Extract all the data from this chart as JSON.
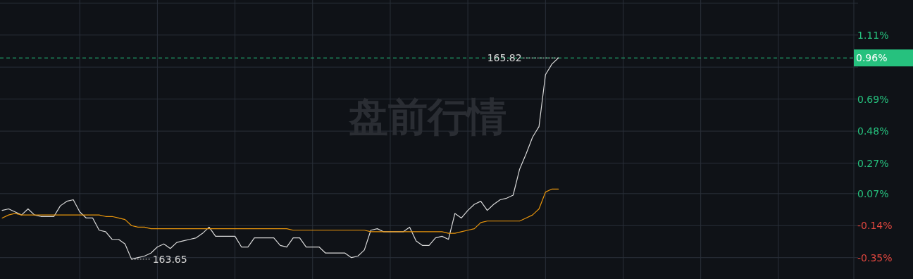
{
  "chart_data": {
    "type": "line",
    "categories": [
      null,
      null,
      null,
      null,
      null,
      null,
      null,
      null,
      null,
      null,
      null,
      null,
      null,
      null,
      null,
      null,
      null,
      null,
      null,
      null,
      null,
      null,
      null,
      null,
      null,
      null,
      null,
      null,
      null,
      null,
      null,
      null,
      null,
      null,
      null,
      null,
      null,
      null,
      null,
      null,
      null,
      null,
      null,
      null,
      null,
      null,
      null,
      null,
      null,
      null,
      null,
      null,
      null,
      null,
      null,
      null,
      null,
      null,
      null,
      null,
      null,
      null,
      null,
      null,
      null,
      null,
      null,
      null,
      null,
      null,
      null,
      null,
      null,
      null,
      null,
      null,
      null,
      null,
      null,
      null,
      null,
      null,
      null,
      null,
      null,
      null,
      null,
      null,
      null,
      null,
      null,
      null,
      null,
      null,
      null,
      null,
      null,
      null,
      null,
      null,
      null,
      null,
      null,
      null,
      null,
      null,
      null,
      null,
      null,
      null,
      null,
      null,
      null,
      null,
      null,
      null,
      null,
      null,
      null,
      null,
      null,
      null,
      null,
      null,
      null,
      null,
      null,
      null,
      null,
      null,
      null,
      null
    ],
    "series": [
      {
        "color": "#d9d9d9",
        "values": [
          -0.04,
          -0.03,
          -0.05,
          -0.07,
          -0.03,
          -0.07,
          -0.08,
          -0.08,
          -0.08,
          -0.01,
          0.02,
          0.03,
          -0.05,
          -0.09,
          -0.09,
          -0.17,
          -0.18,
          -0.23,
          -0.23,
          -0.26,
          -0.36,
          -0.35,
          -0.34,
          -0.32,
          -0.28,
          -0.26,
          -0.29,
          -0.25,
          -0.24,
          -0.23,
          -0.22,
          -0.19,
          -0.15,
          -0.21,
          -0.21,
          -0.21,
          -0.21,
          -0.28,
          -0.28,
          -0.22,
          -0.22,
          -0.22,
          -0.22,
          -0.27,
          -0.28,
          -0.22,
          -0.22,
          -0.28,
          -0.28,
          -0.28,
          -0.32,
          -0.32,
          -0.32,
          -0.32,
          -0.35,
          -0.34,
          -0.3,
          -0.17,
          -0.16,
          -0.18,
          -0.18,
          -0.18,
          -0.18,
          -0.15,
          -0.24,
          -0.27,
          -0.27,
          -0.22,
          -0.21,
          -0.23,
          -0.06,
          -0.09,
          -0.04,
          0.0,
          0.02,
          -0.04,
          0.0,
          0.03,
          0.04,
          0.06,
          0.23,
          0.33,
          0.44,
          0.51,
          0.85,
          0.92,
          0.96,
          null,
          null,
          null,
          null,
          null,
          null,
          null,
          null,
          null,
          null,
          null,
          null,
          null,
          null,
          null,
          null,
          null,
          null,
          null,
          null,
          null,
          null,
          null,
          null,
          null,
          null,
          null,
          null,
          null,
          null,
          null,
          null,
          null,
          null,
          null,
          null,
          null,
          null,
          null,
          null,
          null,
          null,
          null,
          null,
          null
        ]
      },
      {
        "color": "#e8950c",
        "values": [
          -0.09,
          -0.07,
          -0.06,
          -0.07,
          -0.07,
          -0.07,
          -0.07,
          -0.07,
          -0.07,
          -0.07,
          -0.07,
          -0.07,
          -0.07,
          -0.07,
          -0.07,
          -0.07,
          -0.08,
          -0.08,
          -0.09,
          -0.1,
          -0.14,
          -0.15,
          -0.15,
          -0.16,
          -0.16,
          -0.16,
          -0.16,
          -0.16,
          -0.16,
          -0.16,
          -0.16,
          -0.16,
          -0.16,
          -0.16,
          -0.16,
          -0.16,
          -0.16,
          -0.16,
          -0.16,
          -0.16,
          -0.16,
          -0.16,
          -0.16,
          -0.16,
          -0.16,
          -0.17,
          -0.17,
          -0.17,
          -0.17,
          -0.17,
          -0.17,
          -0.17,
          -0.17,
          -0.17,
          -0.17,
          -0.17,
          -0.17,
          -0.18,
          -0.18,
          -0.18,
          -0.18,
          -0.18,
          -0.18,
          -0.18,
          -0.18,
          -0.18,
          -0.18,
          -0.18,
          -0.18,
          -0.19,
          -0.19,
          -0.18,
          -0.17,
          -0.16,
          -0.12,
          -0.11,
          -0.11,
          -0.11,
          -0.11,
          -0.11,
          -0.11,
          -0.09,
          -0.07,
          -0.03,
          0.08,
          0.1,
          0.1,
          null,
          null,
          null,
          null,
          null,
          null,
          null,
          null,
          null,
          null,
          null,
          null,
          null,
          null,
          null,
          null,
          null,
          null,
          null,
          null,
          null,
          null,
          null,
          null,
          null,
          null,
          null,
          null,
          null,
          null,
          null,
          null,
          null,
          null,
          null,
          null,
          null,
          null,
          null,
          null,
          null,
          null,
          null,
          null,
          null
        ]
      }
    ],
    "ylim": [
      -0.49,
      1.34
    ],
    "yticks": [
      {
        "value": 1.32,
        "label": null
      },
      {
        "value": 1.11,
        "label": "1.11%"
      },
      {
        "value": 0.9,
        "label": null
      },
      {
        "value": 0.69,
        "label": "0.69%"
      },
      {
        "value": 0.48,
        "label": "0.48%"
      },
      {
        "value": 0.27,
        "label": "0.27%"
      },
      {
        "value": 0.07,
        "label": "0.07%"
      },
      {
        "value": -0.14,
        "label": "-0.14%"
      },
      {
        "value": -0.35,
        "label": "-0.35%"
      }
    ],
    "tick_labels": "y",
    "grid": true,
    "line_style": "solid",
    "ref_lines": [
      {
        "axis": "y",
        "value": 0.96,
        "label": "0.96%",
        "color": "#26c17e",
        "line_style": "dashed"
      }
    ],
    "annotations": [
      "盘前行情",
      {
        "text": "165.82",
        "y": 0.96
      },
      "163.65"
    ]
  }
}
